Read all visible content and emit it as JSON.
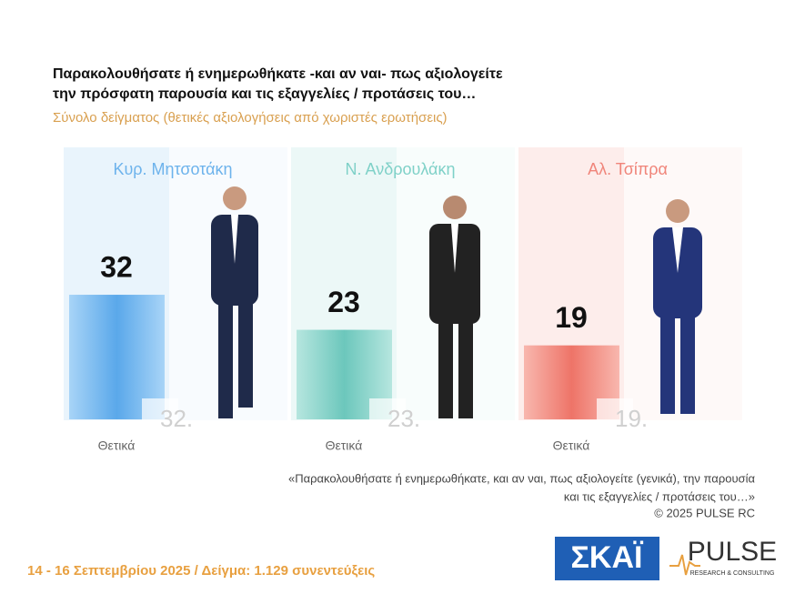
{
  "chart_data": {
    "type": "bar",
    "title": [
      "Παρακολουθήσατε ή ενημερωθήκατε -και αν ναι- πως αξιολογείτε",
      "την πρόσφατη παρουσία και τις εξαγγελίες / προτάσεις του…"
    ],
    "subtitle": "Σύνολο δείγματος  (θετικές αξιολογήσεις από χωριστές ερωτήσεις)",
    "categories": [
      "Κυρ. Μητσοτάκη",
      "Ν. Ανδρουλάκη",
      "Αλ. Τσίπρα"
    ],
    "values": [
      32,
      23,
      19
    ],
    "value_labels": [
      "32.",
      "23.",
      "19."
    ],
    "bar_labels": [
      "Θετικά",
      "Θετικά",
      "Θετικά"
    ],
    "colors": [
      "#6db3ec",
      "#7fd1c8",
      "#f0857a"
    ],
    "footnote": [
      "«Παρακολουθήσατε ή ενημερωθήκατε, και αν ναι, πως αξιολογείτε (γενικά), την παρουσία",
      "και τις εξαγγελίες / προτάσεις του…»",
      "©  2025  PULSE RC"
    ],
    "footer": "14 - 16 Σεπτεμβρίου 2025  /  Δείγμα:  1.129 συνεντεύξεις",
    "logos": [
      "ΣΚΑΪ",
      "PULSE",
      "RESEARCH & CONSULTING"
    ]
  }
}
